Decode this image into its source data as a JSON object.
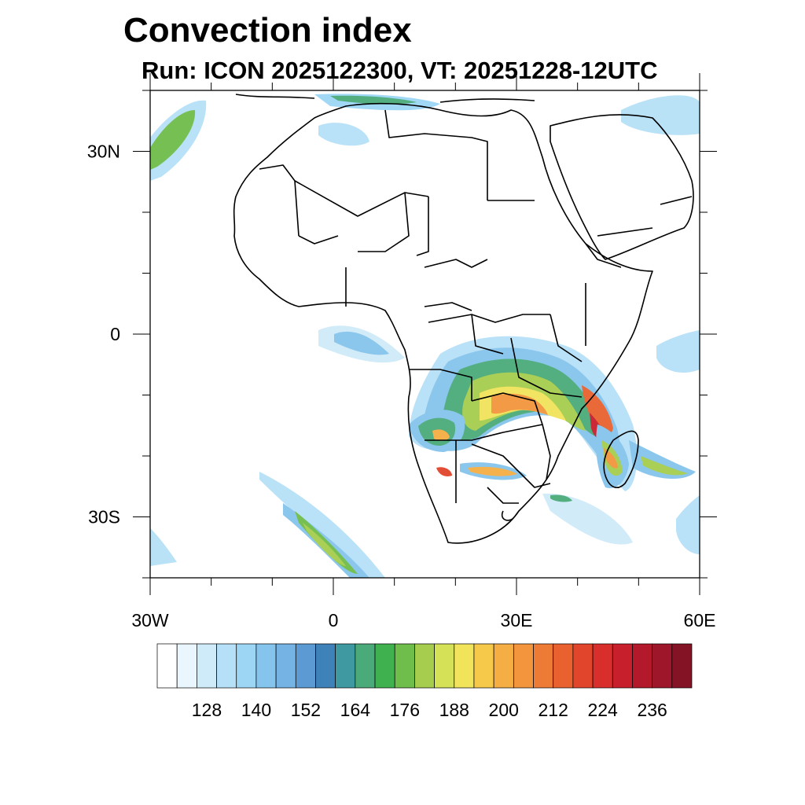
{
  "title": "Convection index",
  "subtitle": "Run: ICON 2025122300,  VT: 20251228-12UTC",
  "map": {
    "lon_range": [
      -30,
      60
    ],
    "lat_range": [
      -40,
      40
    ],
    "lat_ticks": [
      {
        "value": 30,
        "label": "30N"
      },
      {
        "value": 0,
        "label": "0"
      },
      {
        "value": -30,
        "label": "30S"
      }
    ],
    "lon_ticks": [
      {
        "value": -30,
        "label": "30W"
      },
      {
        "value": 0,
        "label": "0"
      },
      {
        "value": 30,
        "label": "30E"
      },
      {
        "value": 60,
        "label": "60E"
      }
    ],
    "minor_tick_step": 10
  },
  "colorbar": {
    "labels": [
      "128",
      "140",
      "152",
      "164",
      "176",
      "188",
      "200",
      "212",
      "224",
      "236"
    ],
    "colors": [
      "#ffffff",
      "#eaf6fd",
      "#cfeaf9",
      "#b6e0f7",
      "#9dd6f5",
      "#85c4ec",
      "#74b3e3",
      "#5b9ad2",
      "#3f82b9",
      "#3e9aa0",
      "#4aaa7a",
      "#3fb14f",
      "#6fbd4a",
      "#a6cd4e",
      "#d5e157",
      "#f1e35a",
      "#f7c94a",
      "#f5ae43",
      "#f2953c",
      "#ee7b35",
      "#e9612f",
      "#e1452b",
      "#d82e2c",
      "#c81f2d",
      "#b3182b",
      "#9d1629",
      "#841425"
    ]
  }
}
